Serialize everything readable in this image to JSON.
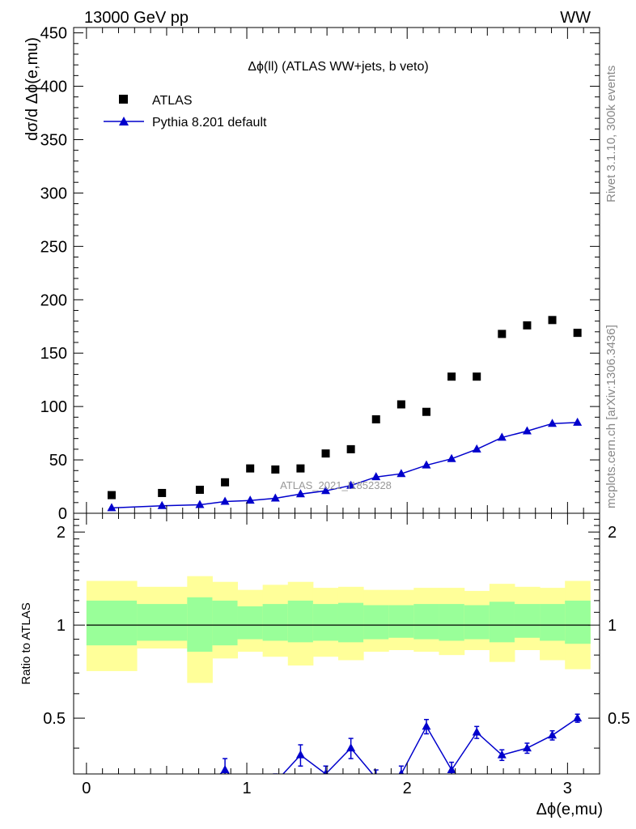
{
  "header": {
    "left": "13000 GeV pp",
    "right": "WW"
  },
  "side_labels": {
    "rivet": "Rivet 3.1.10,  300k events",
    "mcplots": "mcplots.cern.ch [arXiv:1306.3436]"
  },
  "chart_data": [
    {
      "type": "scatter",
      "panel": "main",
      "title": "Δϕ(ll) (ATLAS WW+jets, b veto)",
      "ylabel": "dσ/d Δϕ(e,mu)",
      "xlabel": "Δϕ(e,mu)",
      "watermark": "ATLAS_2021_I1852328",
      "xlim": [
        -0.08,
        3.2
      ],
      "ylim": [
        0,
        455
      ],
      "yticks": [
        "0",
        "50",
        "100",
        "150",
        "200",
        "250",
        "300",
        "350",
        "400",
        "450"
      ],
      "xticks": [
        "0",
        "1",
        "2",
        "3"
      ],
      "legend_position": "top-left",
      "x": [
        0.157,
        0.471,
        0.707,
        0.864,
        1.021,
        1.178,
        1.335,
        1.492,
        1.649,
        1.806,
        1.963,
        2.12,
        2.277,
        2.434,
        2.591,
        2.748,
        2.905,
        3.062
      ],
      "series": [
        {
          "name": "ATLAS",
          "marker": "square",
          "color": "#000000",
          "values": [
            17,
            19,
            22,
            29,
            42,
            41,
            42,
            56,
            60,
            88,
            102,
            95,
            128,
            128,
            168,
            176,
            181,
            169
          ]
        },
        {
          "name": "Pythia 8.201 default",
          "marker": "triangle",
          "color": "#0000cc",
          "values": [
            5,
            7,
            8,
            11,
            12,
            14,
            18,
            21,
            26,
            34,
            37,
            45,
            51,
            60,
            71,
            77,
            84,
            85
          ]
        }
      ]
    },
    {
      "type": "line",
      "panel": "ratio",
      "ylabel": "Ratio to ATLAS",
      "ylim": [
        0.33,
        2.3
      ],
      "yticks": [
        "0.5",
        "1",
        "2"
      ],
      "reference_line": 1,
      "bin_edges": [
        0.0,
        0.314,
        0.628,
        0.785,
        0.942,
        1.099,
        1.256,
        1.413,
        1.57,
        1.727,
        1.884,
        2.041,
        2.198,
        2.356,
        2.513,
        2.67,
        2.827,
        2.984,
        3.141
      ],
      "band_outer_colors": "#ffff99",
      "band_inner_colors": "#99ff99",
      "band_outer_low": [
        0.71,
        0.84,
        0.65,
        0.78,
        0.82,
        0.79,
        0.74,
        0.79,
        0.77,
        0.82,
        0.83,
        0.82,
        0.8,
        0.83,
        0.76,
        0.83,
        0.77,
        0.72
      ],
      "band_outer_high": [
        1.39,
        1.33,
        1.44,
        1.38,
        1.3,
        1.35,
        1.38,
        1.32,
        1.33,
        1.3,
        1.3,
        1.32,
        1.32,
        1.29,
        1.36,
        1.33,
        1.32,
        1.39
      ],
      "band_inner_low": [
        0.86,
        0.89,
        0.82,
        0.86,
        0.9,
        0.89,
        0.88,
        0.89,
        0.88,
        0.9,
        0.91,
        0.9,
        0.89,
        0.9,
        0.88,
        0.91,
        0.89,
        0.87
      ],
      "band_inner_high": [
        1.2,
        1.17,
        1.23,
        1.2,
        1.15,
        1.17,
        1.2,
        1.17,
        1.18,
        1.16,
        1.16,
        1.17,
        1.17,
        1.16,
        1.19,
        1.17,
        1.17,
        1.2
      ],
      "series": [
        {
          "name": "Pythia 8.201 default",
          "color": "#0000cc",
          "x": [
            0.157,
            0.471,
            0.707,
            0.864,
            1.021,
            1.178,
            1.335,
            1.492,
            1.649,
            1.806,
            1.963,
            2.12,
            2.277,
            2.434,
            2.591,
            2.748,
            2.905,
            3.062
          ],
          "values": [
            0.29,
            0.3,
            0.29,
            0.34,
            0.28,
            0.31,
            0.38,
            0.33,
            0.4,
            0.32,
            0.33,
            0.47,
            0.34,
            0.45,
            0.38,
            0.4,
            0.44,
            0.5
          ],
          "errors": [
            0.02,
            0.02,
            0.02,
            0.03,
            0.02,
            0.02,
            0.03,
            0.02,
            0.03,
            0.02,
            0.02,
            0.025,
            0.02,
            0.02,
            0.015,
            0.015,
            0.015,
            0.015
          ]
        }
      ]
    }
  ]
}
